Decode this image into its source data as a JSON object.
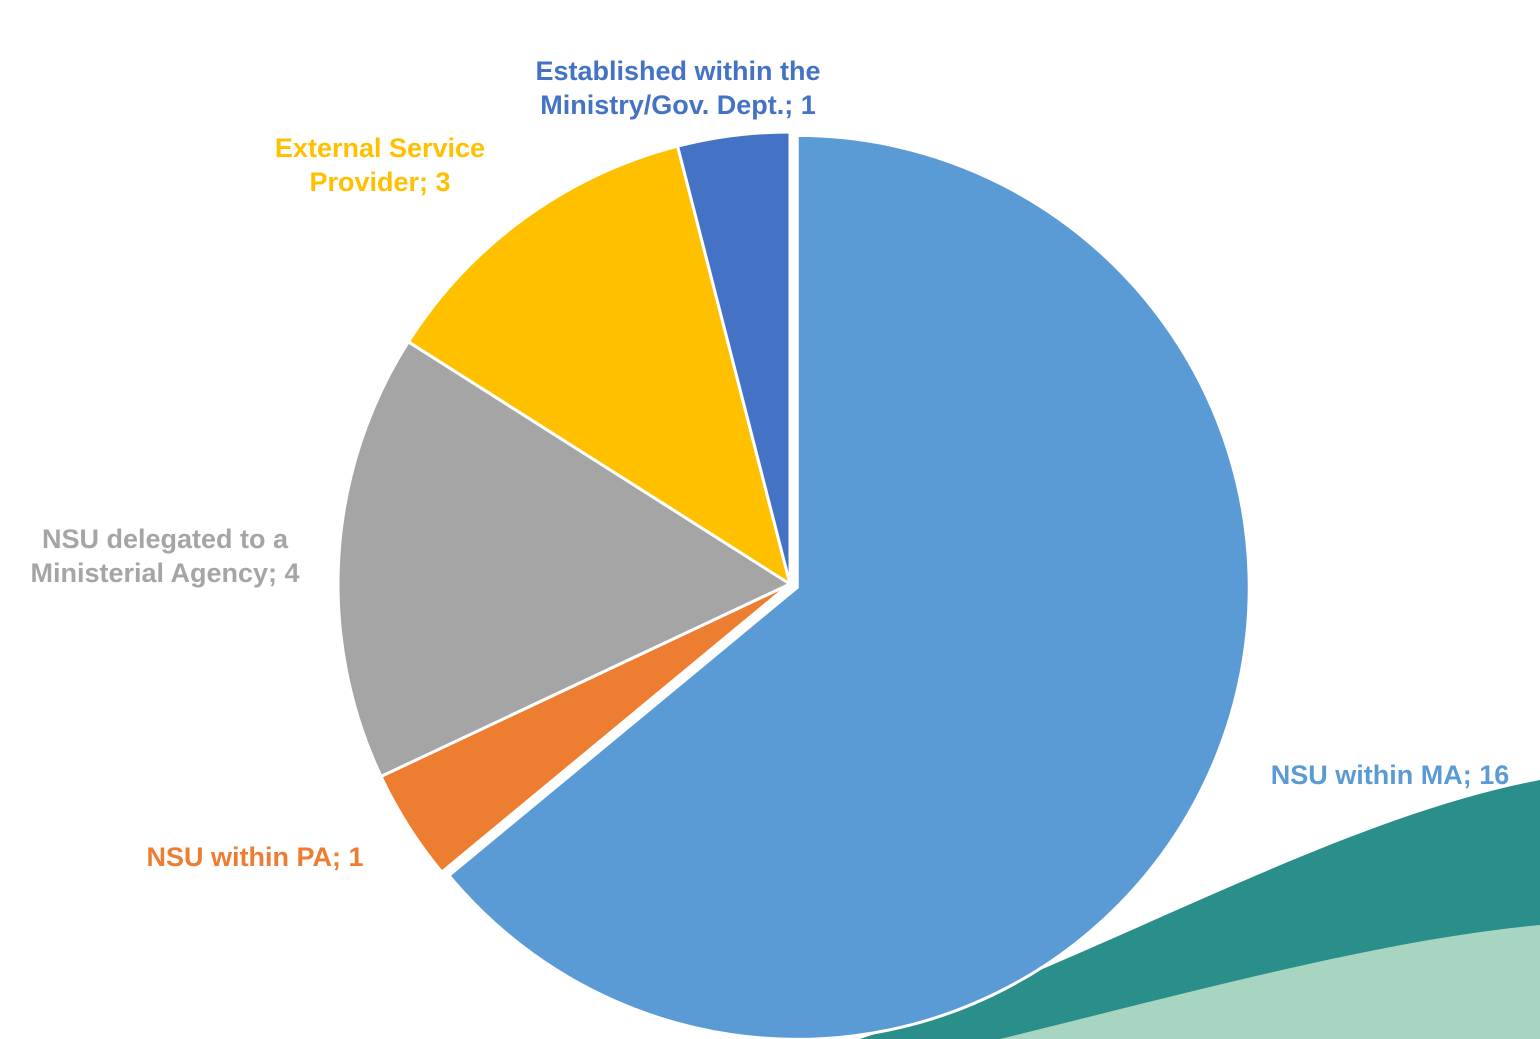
{
  "chart_data": {
    "type": "pie",
    "values": [
      16,
      1,
      4,
      3,
      1
    ],
    "value_labels": [
      "NSU within MA; 16",
      "NSU within PA; 1",
      "NSU delegated to a Ministerial Agency; 4",
      "External Service Provider; 3",
      "Established within the Ministry/Gov. Dept.; 1"
    ],
    "colors": [
      "#5b9bd5",
      "#ed7d31",
      "#a5a5a5",
      "#ffc000",
      "#4472c4"
    ]
  }
}
